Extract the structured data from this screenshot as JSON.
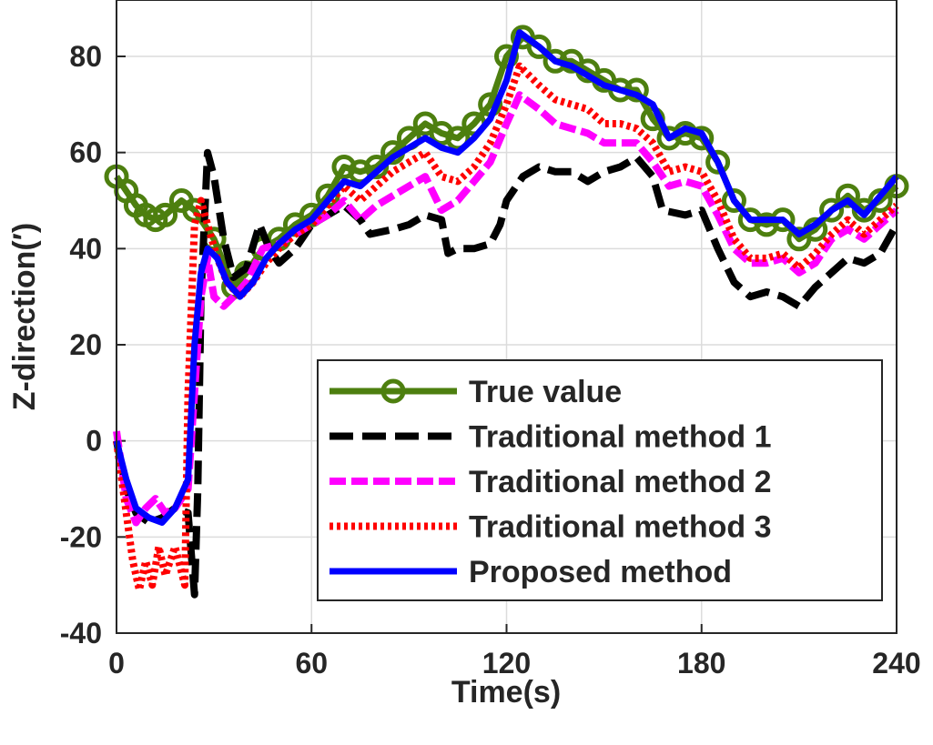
{
  "chart_data": {
    "type": "line",
    "title": "",
    "xlabel": "Time(s)",
    "ylabel": "Z-direction(′)",
    "xlim": [
      0,
      240
    ],
    "ylim": [
      -40,
      85
    ],
    "xticks": [
      0,
      60,
      120,
      180,
      240
    ],
    "yticks": [
      -40,
      -20,
      0,
      20,
      40,
      60,
      80
    ],
    "grid": true,
    "legend_position": "bottom-right",
    "series": [
      {
        "name": "True value",
        "color": "#4d7f0f",
        "style": "solid-circle",
        "x": [
          0,
          3,
          6,
          9,
          12,
          15,
          20,
          24,
          30,
          36,
          40,
          45,
          50,
          55,
          60,
          65,
          70,
          75,
          80,
          85,
          90,
          95,
          100,
          105,
          110,
          115,
          120,
          125,
          130,
          135,
          140,
          145,
          150,
          155,
          160,
          165,
          170,
          175,
          180,
          185,
          190,
          195,
          200,
          205,
          210,
          215,
          220,
          225,
          230,
          235,
          240
        ],
        "y": [
          55,
          52,
          49,
          47,
          46,
          47,
          50,
          48,
          42,
          32,
          35,
          40,
          42,
          45,
          47,
          51,
          57,
          56,
          57,
          60,
          63,
          66,
          64,
          63,
          66,
          70,
          80,
          84,
          82,
          79,
          79,
          77,
          75,
          73,
          73,
          67,
          63,
          64,
          63,
          58,
          50,
          46,
          45,
          46,
          42,
          44,
          48,
          51,
          48,
          50,
          53
        ]
      },
      {
        "name": "Traditional method 1",
        "color": "#000000",
        "style": "dashed",
        "x": [
          0,
          3,
          6,
          10,
          14,
          18,
          22,
          24,
          25,
          26,
          28,
          30,
          33,
          36,
          40,
          44,
          47,
          50,
          55,
          60,
          65,
          70,
          75,
          78,
          85,
          90,
          95,
          100,
          102,
          105,
          110,
          115,
          118,
          120,
          125,
          130,
          135,
          140,
          145,
          150,
          155,
          160,
          165,
          168,
          175,
          180,
          185,
          190,
          195,
          200,
          205,
          210,
          215,
          220,
          225,
          230,
          235,
          240
        ],
        "y": [
          0,
          -10,
          -15,
          -17,
          -16,
          -14,
          -15,
          -32,
          -10,
          30,
          60,
          55,
          42,
          34,
          36,
          45,
          40,
          37,
          40,
          45,
          47,
          49,
          46,
          43,
          44,
          45,
          47,
          46,
          39,
          40,
          40,
          41,
          45,
          50,
          55,
          57,
          56,
          56,
          54,
          56,
          57,
          59,
          55,
          48,
          47,
          48,
          40,
          33,
          30,
          31,
          30,
          28,
          32,
          35,
          38,
          37,
          39,
          45
        ]
      },
      {
        "name": "Traditional method 2",
        "color": "#ff00ff",
        "style": "dashdot",
        "x": [
          0,
          3,
          6,
          9,
          12,
          15,
          18,
          22,
          24,
          26,
          28,
          30,
          33,
          36,
          40,
          45,
          50,
          55,
          60,
          65,
          70,
          75,
          80,
          85,
          90,
          95,
          100,
          105,
          110,
          115,
          120,
          124,
          130,
          135,
          140,
          145,
          150,
          155,
          160,
          165,
          170,
          175,
          180,
          185,
          190,
          195,
          200,
          205,
          210,
          215,
          220,
          225,
          230,
          235,
          240
        ],
        "y": [
          2,
          -12,
          -17,
          -14,
          -12,
          -15,
          -14,
          -10,
          10,
          30,
          38,
          30,
          28,
          30,
          33,
          40,
          41,
          43,
          45,
          47,
          50,
          46,
          49,
          51,
          53,
          55,
          48,
          50,
          54,
          58,
          66,
          72,
          69,
          66,
          65,
          64,
          62,
          62,
          62,
          58,
          53,
          54,
          53,
          47,
          40,
          37,
          37,
          38,
          35,
          37,
          42,
          44,
          42,
          45,
          48
        ]
      },
      {
        "name": "Traditional method 3",
        "color": "#ff0000",
        "style": "dotted",
        "x": [
          0,
          3,
          5,
          7,
          9,
          11,
          13,
          15,
          18,
          21,
          22,
          24,
          26,
          28,
          31,
          34,
          38,
          42,
          46,
          50,
          55,
          60,
          65,
          70,
          75,
          80,
          85,
          90,
          95,
          100,
          105,
          110,
          115,
          120,
          124,
          130,
          135,
          140,
          145,
          150,
          155,
          160,
          165,
          170,
          175,
          180,
          185,
          190,
          195,
          200,
          205,
          210,
          215,
          220,
          225,
          230,
          235,
          240
        ],
        "y": [
          0,
          -15,
          -25,
          -31,
          -25,
          -30,
          -22,
          -28,
          -22,
          -30,
          10,
          45,
          50,
          45,
          38,
          33,
          30,
          33,
          37,
          40,
          43,
          45,
          49,
          53,
          50,
          53,
          56,
          58,
          60,
          55,
          54,
          57,
          62,
          70,
          78,
          74,
          71,
          70,
          69,
          66,
          66,
          65,
          62,
          56,
          57,
          56,
          50,
          42,
          38,
          38,
          39,
          36,
          39,
          43,
          46,
          43,
          46,
          49
        ]
      },
      {
        "name": "Proposed method",
        "color": "#0000ff",
        "style": "solid",
        "x": [
          0,
          3,
          6,
          10,
          14,
          18,
          22,
          24,
          26,
          28,
          31,
          34,
          38,
          42,
          46,
          50,
          55,
          60,
          65,
          70,
          75,
          80,
          85,
          90,
          95,
          100,
          105,
          110,
          115,
          120,
          124,
          130,
          135,
          140,
          145,
          150,
          155,
          160,
          165,
          170,
          175,
          180,
          185,
          190,
          195,
          200,
          205,
          210,
          215,
          220,
          225,
          230,
          235,
          240
        ],
        "y": [
          0,
          -8,
          -14,
          -16,
          -17,
          -14,
          -8,
          20,
          35,
          40,
          38,
          33,
          30,
          33,
          38,
          41,
          44,
          46,
          50,
          54,
          53,
          56,
          59,
          61,
          63,
          61,
          60,
          63,
          67,
          75,
          85,
          82,
          79,
          78,
          76,
          74,
          73,
          72,
          70,
          63,
          65,
          64,
          58,
          50,
          46,
          46,
          46,
          43,
          45,
          48,
          50,
          47,
          51,
          55
        ]
      }
    ]
  }
}
